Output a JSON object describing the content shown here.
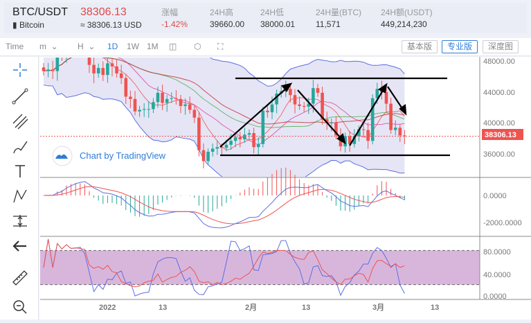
{
  "header": {
    "pair": "BTC/USDT",
    "coin": "Bitcoin",
    "price": "38306.13",
    "price_usd": "≈ 38306.13 USD",
    "stats": [
      {
        "label": "涨幅",
        "value": "-1.42%"
      },
      {
        "label": "24H高",
        "value": "39660.00"
      },
      {
        "label": "24H低",
        "value": "38000.01"
      },
      {
        "label": "24H量(BTC)",
        "value": "11,571"
      },
      {
        "label": "24H额(USDT)",
        "value": "449,214,230"
      }
    ]
  },
  "toolbar": {
    "time": "Time",
    "minute": "m",
    "hour": "H",
    "intervals": [
      "1D",
      "1W",
      "1M"
    ],
    "active": "1D",
    "views": [
      "基本版",
      "专业版",
      "深度图"
    ],
    "active_view": "专业版"
  },
  "colors": {
    "up": "#26a69a",
    "down": "#ef5350",
    "accent": "#2e7dd7"
  },
  "watermark": "Chart by TradingView",
  "price_axis": [
    "48000.00",
    "44000.00",
    "40000.00",
    "36000.00"
  ],
  "last_price_label": "38306.13",
  "macd_axis": [
    "0.0000",
    "-2000.0000"
  ],
  "rsi_axis": [
    "80.0000",
    "40.0000",
    "0.0000"
  ],
  "x_axis": [
    "2022",
    "13",
    "2月",
    "13",
    "3月",
    "13"
  ],
  "chart_data": {
    "type": "candlestick",
    "start": "2021-12-18",
    "closes": [
      46700,
      46900,
      46700,
      48900,
      48600,
      50800,
      50400,
      50800,
      50700,
      50600,
      47500,
      46400,
      47100,
      46200,
      47700,
      47300,
      46400,
      45800,
      43400,
      43100,
      41500,
      41700,
      41800,
      41800,
      42700,
      43900,
      42600,
      43100,
      43200,
      43100,
      42200,
      42400,
      41700,
      40700,
      36500,
      35100,
      36300,
      36700,
      36900,
      36800,
      37200,
      37700,
      38200,
      37900,
      38500,
      38700,
      36900,
      37300,
      41600,
      41400,
      42400,
      43800,
      44100,
      44400,
      43600,
      42400,
      42200,
      42100,
      42500,
      44500,
      43900,
      40500,
      40000,
      40100,
      38400,
      37000,
      38300,
      37300,
      38300,
      39200,
      39100,
      37700,
      43200,
      44400,
      44000,
      42500,
      39100,
      39400,
      38400,
      38306.13
    ]
  }
}
